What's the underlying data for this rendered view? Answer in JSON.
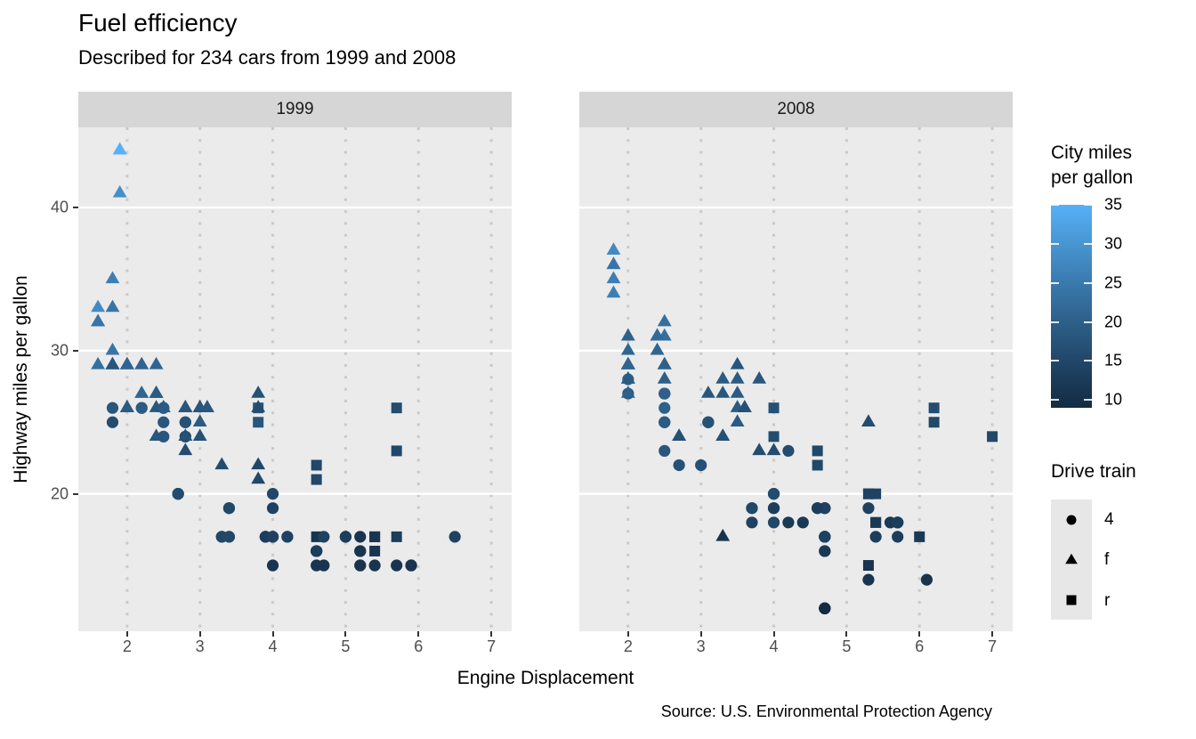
{
  "title": "Fuel efficiency",
  "subtitle": "Described for 234 cars from 1999 and 2008",
  "caption": "Source: U.S. Environmental Protection Agency",
  "facets": [
    "1999",
    "2008"
  ],
  "x_axis": {
    "title": "Engine Displacement",
    "ticks": [
      2,
      3,
      4,
      5,
      6,
      7
    ]
  },
  "y_axis": {
    "title": "Highway miles per gallon",
    "ticks": [
      20,
      30,
      40
    ]
  },
  "legends": {
    "color": {
      "title_lines": [
        "City miles",
        "per gallon"
      ],
      "ticks": [
        35,
        30,
        25,
        20,
        15,
        10
      ],
      "domain": [
        9,
        35
      ],
      "low_color": "#132B43",
      "high_color": "#56B1F7"
    },
    "shape": {
      "title": "Drive train",
      "items": [
        {
          "shape": "circle",
          "label": "4"
        },
        {
          "shape": "triangle",
          "label": "f"
        },
        {
          "shape": "square",
          "label": "r"
        }
      ]
    }
  },
  "colors": {
    "panel_bg": "#EBEBEB",
    "strip_bg": "#D6D6D6",
    "grid_major_y": "#FFFFFF",
    "grid_major_x_dotted": "#C9C9C9",
    "axis_text": "#4D4D4D",
    "axis_tick": "#333333",
    "legend_key_bg": "#E7E7E7"
  },
  "chart_data": {
    "type": "scatter",
    "title": "Fuel efficiency",
    "subtitle": "Described for 234 cars from 1999 and 2008",
    "xlabel": "Engine Displacement",
    "ylabel": "Highway miles per gallon",
    "facet_field": "year",
    "x_field": "displ",
    "y_field": "hwy",
    "color_field": "cty",
    "shape_field": "drv",
    "x_domain": [
      1.33,
      7.28
    ],
    "y_domain": [
      10.4,
      45.6
    ],
    "color_domain": [
      9,
      35
    ],
    "shape_map": {
      "4": "circle",
      "f": "triangle",
      "r": "square"
    },
    "columns": [
      "displ",
      "hwy",
      "cty",
      "drv"
    ],
    "points_1999": [
      [
        1.8,
        29,
        18,
        "f"
      ],
      [
        1.8,
        29,
        21,
        "f"
      ],
      [
        2.8,
        26,
        16,
        "f"
      ],
      [
        2.8,
        26,
        18,
        "f"
      ],
      [
        1.8,
        26,
        18,
        "4"
      ],
      [
        1.8,
        25,
        16,
        "4"
      ],
      [
        2.8,
        25,
        15,
        "4"
      ],
      [
        2.8,
        25,
        17,
        "4"
      ],
      [
        2.8,
        24,
        15,
        "4"
      ],
      [
        5.7,
        17,
        13,
        "r"
      ],
      [
        5.7,
        26,
        16,
        "r"
      ],
      [
        5.7,
        23,
        15,
        "r"
      ],
      [
        5.7,
        15,
        11,
        "4"
      ],
      [
        6.5,
        17,
        14,
        "4"
      ],
      [
        2.4,
        27,
        19,
        "f"
      ],
      [
        3.1,
        26,
        18,
        "f"
      ],
      [
        2.4,
        24,
        18,
        "f"
      ],
      [
        3.0,
        24,
        17,
        "f"
      ],
      [
        3.3,
        22,
        16,
        "f"
      ],
      [
        3.8,
        22,
        15,
        "f"
      ],
      [
        3.8,
        21,
        15,
        "f"
      ],
      [
        3.9,
        17,
        13,
        "4"
      ],
      [
        3.9,
        17,
        14,
        "4"
      ],
      [
        5.2,
        17,
        11,
        "4"
      ],
      [
        5.2,
        15,
        11,
        "4"
      ],
      [
        3.9,
        17,
        13,
        "4"
      ],
      [
        5.2,
        16,
        11,
        "4"
      ],
      [
        5.9,
        15,
        11,
        "4"
      ],
      [
        5.2,
        15,
        11,
        "4"
      ],
      [
        5.2,
        16,
        11,
        "4"
      ],
      [
        5.9,
        15,
        11,
        "4"
      ],
      [
        4.6,
        17,
        11,
        "r"
      ],
      [
        5.4,
        17,
        11,
        "r"
      ],
      [
        4.0,
        17,
        14,
        "4"
      ],
      [
        4.0,
        17,
        15,
        "4"
      ],
      [
        4.0,
        17,
        14,
        "4"
      ],
      [
        5.0,
        17,
        13,
        "4"
      ],
      [
        4.2,
        17,
        14,
        "4"
      ],
      [
        4.2,
        17,
        14,
        "4"
      ],
      [
        4.6,
        16,
        13,
        "4"
      ],
      [
        4.6,
        16,
        13,
        "4"
      ],
      [
        4.6,
        16,
        13,
        "4"
      ],
      [
        5.4,
        15,
        11,
        "4"
      ],
      [
        3.8,
        26,
        18,
        "r"
      ],
      [
        3.8,
        25,
        18,
        "r"
      ],
      [
        4.6,
        21,
        15,
        "r"
      ],
      [
        4.6,
        22,
        15,
        "r"
      ],
      [
        1.6,
        33,
        28,
        "f"
      ],
      [
        1.6,
        32,
        24,
        "f"
      ],
      [
        1.6,
        32,
        25,
        "f"
      ],
      [
        1.6,
        29,
        23,
        "f"
      ],
      [
        1.6,
        32,
        24,
        "f"
      ],
      [
        2.4,
        26,
        18,
        "f"
      ],
      [
        2.4,
        27,
        18,
        "f"
      ],
      [
        2.5,
        26,
        18,
        "f"
      ],
      [
        2.5,
        26,
        18,
        "f"
      ],
      [
        2.0,
        26,
        19,
        "f"
      ],
      [
        2.0,
        29,
        19,
        "f"
      ],
      [
        4.0,
        20,
        15,
        "4"
      ],
      [
        4.7,
        17,
        14,
        "4"
      ],
      [
        4.0,
        15,
        11,
        "4"
      ],
      [
        4.6,
        15,
        11,
        "4"
      ],
      [
        5.4,
        17,
        11,
        "r"
      ],
      [
        5.4,
        16,
        11,
        "r"
      ],
      [
        4.0,
        19,
        14,
        "4"
      ],
      [
        5.0,
        17,
        13,
        "4"
      ],
      [
        2.4,
        29,
        21,
        "f"
      ],
      [
        2.4,
        27,
        19,
        "f"
      ],
      [
        3.0,
        26,
        18,
        "f"
      ],
      [
        3.0,
        25,
        19,
        "f"
      ],
      [
        3.3,
        17,
        14,
        "4"
      ],
      [
        3.3,
        17,
        15,
        "4"
      ],
      [
        3.1,
        26,
        18,
        "f"
      ],
      [
        3.8,
        26,
        16,
        "f"
      ],
      [
        3.8,
        27,
        17,
        "f"
      ],
      [
        2.5,
        25,
        18,
        "4"
      ],
      [
        2.5,
        24,
        18,
        "4"
      ],
      [
        2.2,
        26,
        21,
        "4"
      ],
      [
        2.2,
        26,
        19,
        "4"
      ],
      [
        2.5,
        26,
        19,
        "4"
      ],
      [
        2.5,
        26,
        19,
        "4"
      ],
      [
        2.7,
        20,
        15,
        "4"
      ],
      [
        2.7,
        20,
        16,
        "4"
      ],
      [
        3.4,
        19,
        15,
        "4"
      ],
      [
        3.4,
        17,
        15,
        "4"
      ],
      [
        2.2,
        29,
        21,
        "f"
      ],
      [
        2.2,
        27,
        21,
        "f"
      ],
      [
        3.0,
        26,
        18,
        "f"
      ],
      [
        3.0,
        26,
        18,
        "f"
      ],
      [
        2.2,
        27,
        21,
        "f"
      ],
      [
        2.2,
        29,
        21,
        "f"
      ],
      [
        3.0,
        26,
        18,
        "f"
      ],
      [
        3.0,
        26,
        18,
        "f"
      ],
      [
        1.8,
        30,
        24,
        "f"
      ],
      [
        1.8,
        33,
        24,
        "f"
      ],
      [
        1.8,
        35,
        26,
        "f"
      ],
      [
        4.7,
        15,
        11,
        "4"
      ],
      [
        2.7,
        20,
        15,
        "4"
      ],
      [
        2.7,
        20,
        16,
        "4"
      ],
      [
        3.4,
        17,
        15,
        "4"
      ],
      [
        3.4,
        19,
        15,
        "4"
      ],
      [
        2.0,
        29,
        21,
        "f"
      ],
      [
        2.0,
        26,
        19,
        "f"
      ],
      [
        2.8,
        24,
        17,
        "f"
      ],
      [
        1.9,
        44,
        33,
        "f"
      ],
      [
        2.0,
        29,
        21,
        "f"
      ],
      [
        2.0,
        26,
        19,
        "f"
      ],
      [
        2.8,
        23,
        16,
        "f"
      ],
      [
        2.8,
        24,
        17,
        "f"
      ],
      [
        1.9,
        44,
        35,
        "f"
      ],
      [
        1.9,
        41,
        29,
        "f"
      ],
      [
        2.0,
        29,
        21,
        "f"
      ],
      [
        2.0,
        26,
        19,
        "f"
      ],
      [
        1.8,
        29,
        21,
        "f"
      ],
      [
        1.8,
        29,
        18,
        "f"
      ],
      [
        2.8,
        26,
        16,
        "f"
      ],
      [
        2.8,
        26,
        18,
        "f"
      ]
    ],
    "points_2008": [
      [
        2.0,
        31,
        20,
        "f"
      ],
      [
        2.0,
        30,
        21,
        "f"
      ],
      [
        3.1,
        27,
        18,
        "f"
      ],
      [
        2.0,
        28,
        20,
        "4"
      ],
      [
        2.0,
        27,
        19,
        "4"
      ],
      [
        3.1,
        25,
        17,
        "4"
      ],
      [
        3.1,
        25,
        15,
        "4"
      ],
      [
        3.1,
        25,
        17,
        "4"
      ],
      [
        4.2,
        23,
        16,
        "4"
      ],
      [
        5.3,
        20,
        14,
        "r"
      ],
      [
        5.3,
        15,
        11,
        "r"
      ],
      [
        5.3,
        20,
        14,
        "r"
      ],
      [
        6.0,
        17,
        12,
        "r"
      ],
      [
        6.2,
        26,
        16,
        "r"
      ],
      [
        6.2,
        25,
        15,
        "r"
      ],
      [
        7.0,
        24,
        15,
        "r"
      ],
      [
        5.3,
        19,
        14,
        "4"
      ],
      [
        5.3,
        14,
        11,
        "4"
      ],
      [
        2.4,
        30,
        22,
        "f"
      ],
      [
        3.5,
        29,
        18,
        "f"
      ],
      [
        3.6,
        26,
        17,
        "f"
      ],
      [
        3.3,
        24,
        17,
        "f"
      ],
      [
        3.3,
        24,
        17,
        "f"
      ],
      [
        3.3,
        24,
        17,
        "f"
      ],
      [
        3.3,
        17,
        11,
        "f"
      ],
      [
        3.8,
        23,
        16,
        "f"
      ],
      [
        4.0,
        23,
        16,
        "f"
      ],
      [
        3.7,
        19,
        15,
        "4"
      ],
      [
        3.7,
        18,
        14,
        "4"
      ],
      [
        4.7,
        19,
        14,
        "4"
      ],
      [
        4.7,
        19,
        14,
        "4"
      ],
      [
        4.7,
        12,
        9,
        "4"
      ],
      [
        4.7,
        17,
        13,
        "4"
      ],
      [
        4.7,
        12,
        9,
        "4"
      ],
      [
        4.7,
        17,
        13,
        "4"
      ],
      [
        5.7,
        18,
        13,
        "4"
      ],
      [
        4.7,
        16,
        12,
        "4"
      ],
      [
        4.7,
        12,
        9,
        "4"
      ],
      [
        4.7,
        17,
        13,
        "4"
      ],
      [
        4.7,
        17,
        13,
        "4"
      ],
      [
        4.7,
        16,
        12,
        "4"
      ],
      [
        4.7,
        17,
        13,
        "4"
      ],
      [
        5.7,
        17,
        13,
        "4"
      ],
      [
        5.4,
        18,
        12,
        "r"
      ],
      [
        4.0,
        19,
        13,
        "4"
      ],
      [
        4.6,
        19,
        13,
        "4"
      ],
      [
        5.4,
        17,
        13,
        "4"
      ],
      [
        4.0,
        26,
        17,
        "r"
      ],
      [
        4.0,
        24,
        16,
        "r"
      ],
      [
        4.6,
        23,
        15,
        "r"
      ],
      [
        4.6,
        22,
        15,
        "r"
      ],
      [
        5.4,
        20,
        14,
        "r"
      ],
      [
        1.8,
        34,
        26,
        "f"
      ],
      [
        1.8,
        36,
        25,
        "f"
      ],
      [
        1.8,
        36,
        24,
        "f"
      ],
      [
        2.0,
        29,
        21,
        "f"
      ],
      [
        2.4,
        30,
        21,
        "f"
      ],
      [
        2.4,
        31,
        21,
        "f"
      ],
      [
        3.3,
        28,
        19,
        "f"
      ],
      [
        2.0,
        28,
        20,
        "f"
      ],
      [
        2.0,
        27,
        20,
        "f"
      ],
      [
        2.7,
        24,
        17,
        "f"
      ],
      [
        2.7,
        24,
        16,
        "f"
      ],
      [
        2.7,
        24,
        17,
        "f"
      ],
      [
        3.0,
        22,
        17,
        "4"
      ],
      [
        3.7,
        19,
        15,
        "4"
      ],
      [
        4.7,
        12,
        9,
        "4"
      ],
      [
        4.7,
        19,
        14,
        "4"
      ],
      [
        5.7,
        18,
        13,
        "4"
      ],
      [
        6.1,
        14,
        11,
        "4"
      ],
      [
        4.2,
        18,
        12,
        "4"
      ],
      [
        4.4,
        18,
        12,
        "4"
      ],
      [
        5.4,
        18,
        12,
        "r"
      ],
      [
        4.0,
        19,
        13,
        "4"
      ],
      [
        4.6,
        19,
        13,
        "4"
      ],
      [
        2.5,
        31,
        23,
        "f"
      ],
      [
        2.5,
        32,
        23,
        "f"
      ],
      [
        3.5,
        27,
        19,
        "f"
      ],
      [
        3.5,
        26,
        19,
        "f"
      ],
      [
        3.5,
        25,
        19,
        "f"
      ],
      [
        4.0,
        20,
        14,
        "4"
      ],
      [
        5.6,
        18,
        12,
        "4"
      ],
      [
        3.8,
        28,
        18,
        "f"
      ],
      [
        5.3,
        25,
        16,
        "f"
      ],
      [
        2.5,
        27,
        20,
        "4"
      ],
      [
        2.5,
        25,
        19,
        "4"
      ],
      [
        2.5,
        26,
        20,
        "4"
      ],
      [
        2.5,
        23,
        18,
        "4"
      ],
      [
        2.5,
        25,
        20,
        "4"
      ],
      [
        2.5,
        27,
        20,
        "4"
      ],
      [
        2.5,
        25,
        19,
        "4"
      ],
      [
        2.5,
        27,
        20,
        "4"
      ],
      [
        4.0,
        20,
        16,
        "4"
      ],
      [
        4.7,
        17,
        14,
        "4"
      ],
      [
        2.4,
        31,
        21,
        "f"
      ],
      [
        2.4,
        31,
        21,
        "f"
      ],
      [
        3.5,
        28,
        19,
        "f"
      ],
      [
        2.4,
        31,
        21,
        "f"
      ],
      [
        2.4,
        31,
        22,
        "f"
      ],
      [
        3.3,
        27,
        18,
        "f"
      ],
      [
        1.8,
        37,
        28,
        "f"
      ],
      [
        1.8,
        35,
        26,
        "f"
      ],
      [
        5.7,
        18,
        13,
        "4"
      ],
      [
        2.7,
        22,
        17,
        "4"
      ],
      [
        4.0,
        18,
        15,
        "4"
      ],
      [
        4.0,
        20,
        16,
        "4"
      ],
      [
        2.0,
        29,
        21,
        "f"
      ],
      [
        2.0,
        29,
        22,
        "f"
      ],
      [
        2.0,
        29,
        22,
        "f"
      ],
      [
        2.0,
        29,
        21,
        "f"
      ],
      [
        2.5,
        29,
        21,
        "f"
      ],
      [
        2.5,
        29,
        21,
        "f"
      ],
      [
        2.5,
        28,
        20,
        "f"
      ],
      [
        2.5,
        29,
        20,
        "f"
      ],
      [
        2.0,
        28,
        19,
        "f"
      ],
      [
        2.0,
        29,
        21,
        "f"
      ],
      [
        3.6,
        26,
        17,
        "f"
      ]
    ]
  }
}
